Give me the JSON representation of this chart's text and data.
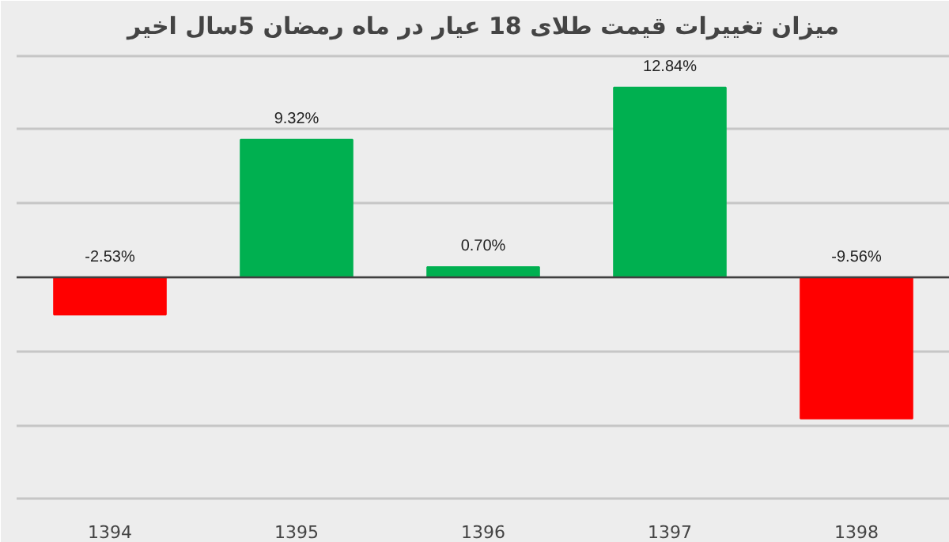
{
  "chart_data": {
    "type": "bar",
    "title": "میزان تغییرات قیمت طلای 18 عیار در ماه رمضان 5سال اخیر",
    "categories": [
      "1394",
      "1395",
      "1396",
      "1397",
      "1398"
    ],
    "values": [
      -2.53,
      9.32,
      0.7,
      12.84,
      -9.56
    ],
    "value_labels": [
      "-2.53%",
      "9.32%",
      "0.70%",
      "12.84%",
      "-9.56%"
    ],
    "colors": [
      "#ff0000",
      "#00b050",
      "#00b050",
      "#00b050",
      "#ff0000"
    ],
    "ylim": [
      -15.5,
      15.5
    ],
    "yticks": [
      {
        "value": -15,
        "label": null
      },
      {
        "value": -10,
        "label": null
      },
      {
        "value": -5,
        "label": null
      },
      {
        "value": 0,
        "label": null
      },
      {
        "value": 5,
        "label": null
      },
      {
        "value": 10,
        "label": null
      },
      {
        "value": 15,
        "label": null
      }
    ],
    "grid": "y",
    "tick_labels": "x"
  }
}
